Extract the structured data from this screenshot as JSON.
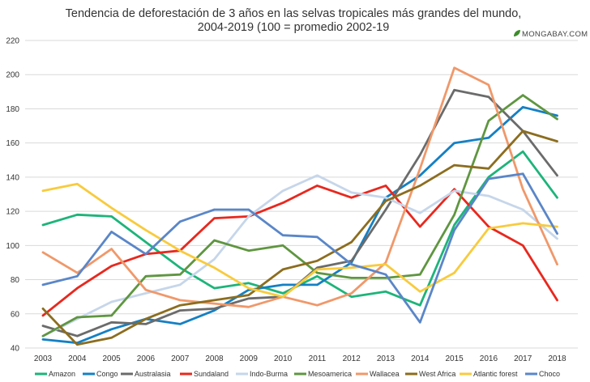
{
  "brand": {
    "text": "MONGABAY.COM",
    "icon": "leaf-icon",
    "icon_color": "#3d8c2a"
  },
  "chart_data": {
    "type": "line",
    "title": "Tendencia de deforestación de 3 años en las selvas tropicales más grandes del mundo,",
    "subtitle": "2004-2019 (100 = promedio 2002-19",
    "xlabel": "",
    "ylabel": "",
    "x": [
      "2003",
      "2004",
      "2005",
      "2006",
      "2007",
      "2008",
      "2009",
      "2010",
      "2011",
      "2012",
      "2013",
      "2014",
      "2015",
      "2016",
      "2017",
      "2018"
    ],
    "ylim": [
      40,
      220
    ],
    "yticks": [
      40,
      60,
      80,
      100,
      120,
      140,
      160,
      180,
      200,
      220
    ],
    "grid": true,
    "legend_position": "bottom",
    "series": [
      {
        "name": "Amazon",
        "color": "#1db47a",
        "values": [
          112,
          118,
          117,
          102,
          87,
          75,
          78,
          72,
          82,
          70,
          73,
          65,
          112,
          140,
          155,
          128
        ]
      },
      {
        "name": "Congo",
        "color": "#1480c4",
        "values": [
          45,
          43,
          51,
          57,
          54,
          62,
          74,
          77,
          77,
          90,
          128,
          141,
          160,
          163,
          181,
          176
        ]
      },
      {
        "name": "Australasia",
        "color": "#6b6b6b",
        "values": [
          53,
          47,
          55,
          54,
          62,
          63,
          69,
          70,
          87,
          91,
          121,
          153,
          191,
          187,
          167,
          141
        ]
      },
      {
        "name": "Sundaland",
        "color": "#e8281e",
        "values": [
          59,
          75,
          88,
          95,
          97,
          116,
          117,
          125,
          135,
          128,
          135,
          111,
          133,
          111,
          100,
          68
        ]
      },
      {
        "name": "Indo-Burma",
        "color": "#c6d6ea",
        "values": [
          47,
          57,
          67,
          72,
          77,
          92,
          117,
          132,
          141,
          131,
          128,
          119,
          132,
          129,
          121,
          104
        ]
      },
      {
        "name": "Mesoamerica",
        "color": "#5f9640",
        "values": [
          47,
          58,
          59,
          82,
          83,
          103,
          97,
          100,
          84,
          81,
          81,
          83,
          118,
          173,
          188,
          174
        ]
      },
      {
        "name": "Wallacea",
        "color": "#f0986a",
        "values": [
          96,
          84,
          98,
          74,
          68,
          66,
          64,
          70,
          65,
          72,
          90,
          145,
          204,
          194,
          133,
          89
        ]
      },
      {
        "name": "West Africa",
        "color": "#8c6d1f",
        "values": [
          63,
          42,
          46,
          57,
          65,
          68,
          71,
          86,
          91,
          102,
          126,
          135,
          147,
          145,
          167,
          161
        ]
      },
      {
        "name": "Atlantic forest",
        "color": "#f8cb3d",
        "values": [
          132,
          136,
          122,
          109,
          97,
          87,
          75,
          70,
          86,
          87,
          89,
          73,
          84,
          110,
          113,
          111
        ]
      },
      {
        "name": "Choco",
        "color": "#5a86c8",
        "values": [
          77,
          82,
          108,
          95,
          114,
          121,
          121,
          106,
          105,
          89,
          83,
          55,
          109,
          139,
          142,
          107
        ]
      }
    ]
  }
}
